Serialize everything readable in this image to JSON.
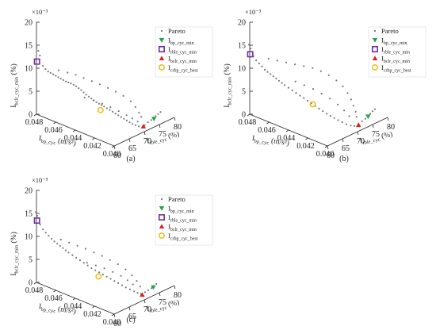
{
  "chart_data": [
    {
      "type": "scatter",
      "caption": "(a)",
      "projection": "3d",
      "zlabel": "I_bclr_cyc_min (%)",
      "zlabel_main": "I",
      "zlabel_sub": "bclr_cyc_min",
      "zlabel_unit": " (%)",
      "zscale_exponent": "×10⁻³",
      "z_ticks": [
        "0",
        "5",
        "10",
        "15",
        "20"
      ],
      "x_ticks": [
        "0.048",
        "0.046",
        "0.044",
        "0.042",
        "0.040"
      ],
      "y_ticks": [
        "60",
        "65",
        "70",
        "75",
        "80"
      ],
      "xlabel_main": "I",
      "xlabel_sub": "bp_cyc",
      "xlabel_unit": " (m/s²)",
      "ylabel_main": "I",
      "ylabel_sub": "rble_cyc",
      "ylabel_unit": " (%)",
      "legend": [
        {
          "main": "Pareto",
          "sub": "",
          "marker": "dot",
          "color": "#777777"
        },
        {
          "main": "I",
          "sub": "bp_cyc_min",
          "marker": "triangle-down",
          "color": "#22a050"
        },
        {
          "main": "I",
          "sub": "rble_cyc_min",
          "marker": "square",
          "color": "#7030a0"
        },
        {
          "main": "I",
          "sub": "bclr_cyc_min",
          "marker": "triangle-up",
          "color": "#e0201c"
        },
        {
          "main": "I",
          "sub": "crbp_cyc_best",
          "marker": "circle",
          "color": "#f0c020"
        }
      ],
      "highlight_points": {
        "bp_cyc_min": [
          0.04,
          73.2,
          0.0018
        ],
        "rble_cyc_min": [
          0.0481,
          60.5,
          0.0112
        ],
        "bclr_cyc_min": [
          0.0404,
          71.0,
          0.0005
        ],
        "crbp_cyc_best": [
          0.0428,
          64.5,
          0.004
        ]
      },
      "pareto_points": [
        [
          0.0481,
          60.4,
          0.0142
        ],
        [
          0.048,
          60.6,
          0.0136
        ],
        [
          0.0479,
          60.8,
          0.0126
        ],
        [
          0.0477,
          61.2,
          0.0104
        ],
        [
          0.0475,
          61.4,
          0.0098
        ],
        [
          0.0473,
          61.6,
          0.0094
        ],
        [
          0.0471,
          61.8,
          0.0092
        ],
        [
          0.0469,
          62.0,
          0.009
        ],
        [
          0.0467,
          62.2,
          0.0088
        ],
        [
          0.0465,
          62.4,
          0.0086
        ],
        [
          0.0463,
          62.6,
          0.0084
        ],
        [
          0.0461,
          62.8,
          0.0082
        ],
        [
          0.0459,
          63.0,
          0.008
        ],
        [
          0.0457,
          63.2,
          0.0079
        ],
        [
          0.0455,
          63.4,
          0.0078
        ],
        [
          0.0453,
          63.6,
          0.0076
        ],
        [
          0.0451,
          63.8,
          0.0074
        ],
        [
          0.0449,
          64.0,
          0.0071
        ],
        [
          0.0447,
          64.2,
          0.0068
        ],
        [
          0.0445,
          64.4,
          0.0064
        ],
        [
          0.0443,
          64.6,
          0.006
        ],
        [
          0.0441,
          64.8,
          0.0057
        ],
        [
          0.0439,
          65.0,
          0.0054
        ],
        [
          0.0437,
          65.2,
          0.0051
        ],
        [
          0.0435,
          65.4,
          0.0048
        ],
        [
          0.0433,
          65.6,
          0.0046
        ],
        [
          0.0431,
          65.8,
          0.0044
        ],
        [
          0.0429,
          66.0,
          0.0042
        ],
        [
          0.0427,
          66.3,
          0.0039
        ],
        [
          0.0425,
          66.6,
          0.0036
        ],
        [
          0.0423,
          66.9,
          0.0033
        ],
        [
          0.0421,
          67.2,
          0.003
        ],
        [
          0.0419,
          67.5,
          0.0027
        ],
        [
          0.0417,
          67.8,
          0.0024
        ],
        [
          0.0415,
          68.1,
          0.0021
        ],
        [
          0.0413,
          68.4,
          0.0018
        ],
        [
          0.0411,
          68.7,
          0.0015
        ],
        [
          0.0409,
          69.0,
          0.0012
        ],
        [
          0.0407,
          69.4,
          0.001
        ],
        [
          0.0405,
          69.8,
          0.0008
        ],
        [
          0.0403,
          70.3,
          0.0006
        ],
        [
          0.0402,
          70.8,
          0.001
        ],
        [
          0.0401,
          71.5,
          0.0015
        ],
        [
          0.04,
          72.3,
          0.0018
        ],
        [
          0.04,
          73.0,
          0.002
        ],
        [
          0.04,
          73.8,
          0.0022
        ],
        [
          0.04,
          74.6,
          0.0024
        ],
        [
          0.04,
          75.4,
          0.0026
        ],
        [
          0.0468,
          63.5,
          0.0095
        ],
        [
          0.0462,
          64.5,
          0.0092
        ],
        [
          0.0456,
          65.3,
          0.009
        ],
        [
          0.045,
          66.0,
          0.0086
        ],
        [
          0.0444,
          66.8,
          0.0082
        ],
        [
          0.0438,
          67.5,
          0.0078
        ],
        [
          0.0432,
          68.2,
          0.0073
        ],
        [
          0.0426,
          68.9,
          0.0068
        ],
        [
          0.042,
          69.5,
          0.0062
        ],
        [
          0.0414,
          70.0,
          0.0054
        ],
        [
          0.041,
          70.3,
          0.0044
        ],
        [
          0.0407,
          70.5,
          0.0034
        ],
        [
          0.0405,
          70.6,
          0.0026
        ],
        [
          0.0446,
          65.0,
          0.005
        ],
        [
          0.044,
          66.0,
          0.0046
        ],
        [
          0.0434,
          67.0,
          0.0041
        ],
        [
          0.0428,
          67.8,
          0.0036
        ],
        [
          0.0422,
          68.6,
          0.003
        ],
        [
          0.0416,
          69.3,
          0.0024
        ],
        [
          0.0412,
          69.9,
          0.0019
        ],
        [
          0.0408,
          70.4,
          0.0014
        ]
      ]
    },
    {
      "type": "scatter",
      "caption": "(b)",
      "projection": "3d",
      "zlabel": "I_bclr_cyc_min (%)",
      "zlabel_main": "I",
      "zlabel_sub": "bclr_cyc_min",
      "zlabel_unit": " (%)",
      "zscale_exponent": "×10⁻³",
      "z_ticks": [
        "0",
        "5",
        "10",
        "15",
        "20"
      ],
      "x_ticks": [
        "0.048",
        "0.046",
        "0.044",
        "0.042",
        "0.040"
      ],
      "y_ticks": [
        "60",
        "65",
        "70",
        "75",
        "80"
      ],
      "xlabel_main": "I",
      "xlabel_sub": "bp_cyc",
      "xlabel_unit": " (m/s²)",
      "ylabel_main": "I",
      "ylabel_sub": "rble_cyc",
      "ylabel_unit": " (%)",
      "legend": [
        {
          "main": "Pareto",
          "sub": "",
          "marker": "dot",
          "color": "#777777"
        },
        {
          "main": "I",
          "sub": "bp_cyc_min",
          "marker": "triangle-down",
          "color": "#22a050"
        },
        {
          "main": "I",
          "sub": "rble_cyc_min",
          "marker": "square",
          "color": "#7030a0"
        },
        {
          "main": "I",
          "sub": "bclr_cyc_min",
          "marker": "triangle-up",
          "color": "#e0201c"
        },
        {
          "main": "I",
          "sub": "crbp_cyc_best",
          "marker": "circle",
          "color": "#f0c020"
        }
      ],
      "highlight_points": {
        "bp_cyc_min": [
          0.04,
          73.5,
          0.0022
        ],
        "rble_cyc_min": [
          0.0481,
          60.5,
          0.0128
        ],
        "bclr_cyc_min": [
          0.0403,
          71.3,
          0.0008
        ],
        "crbp_cyc_best": [
          0.043,
          64.8,
          0.005
        ]
      },
      "pareto_points": [
        [
          0.0482,
          60.4,
          0.0148
        ],
        [
          0.0481,
          60.6,
          0.014
        ],
        [
          0.0479,
          60.9,
          0.0124
        ],
        [
          0.0477,
          61.2,
          0.0116
        ],
        [
          0.0475,
          61.5,
          0.011
        ],
        [
          0.0473,
          61.8,
          0.0104
        ],
        [
          0.0471,
          62.1,
          0.0098
        ],
        [
          0.0469,
          62.4,
          0.0094
        ],
        [
          0.0467,
          62.7,
          0.009
        ],
        [
          0.0465,
          63.0,
          0.0086
        ],
        [
          0.0463,
          63.3,
          0.0082
        ],
        [
          0.0461,
          63.6,
          0.0078
        ],
        [
          0.0459,
          63.9,
          0.0074
        ],
        [
          0.0457,
          64.2,
          0.007
        ],
        [
          0.0454,
          64.5,
          0.0066
        ],
        [
          0.0451,
          64.8,
          0.0062
        ],
        [
          0.0448,
          65.1,
          0.0058
        ],
        [
          0.0445,
          65.4,
          0.0054
        ],
        [
          0.0442,
          65.7,
          0.005
        ],
        [
          0.0439,
          66.0,
          0.0046
        ],
        [
          0.0436,
          66.3,
          0.0042
        ],
        [
          0.0433,
          66.6,
          0.0038
        ],
        [
          0.043,
          66.9,
          0.0034
        ],
        [
          0.0427,
          67.2,
          0.003
        ],
        [
          0.0424,
          67.5,
          0.0026
        ],
        [
          0.0421,
          67.8,
          0.0023
        ],
        [
          0.0418,
          68.1,
          0.002
        ],
        [
          0.0415,
          68.4,
          0.0017
        ],
        [
          0.0412,
          68.8,
          0.0014
        ],
        [
          0.0409,
          69.2,
          0.0011
        ],
        [
          0.0406,
          69.7,
          0.0009
        ],
        [
          0.0404,
          70.3,
          0.0008
        ],
        [
          0.0402,
          71.0,
          0.0012
        ],
        [
          0.0401,
          71.8,
          0.0016
        ],
        [
          0.04,
          72.6,
          0.002
        ],
        [
          0.04,
          73.4,
          0.0023
        ],
        [
          0.04,
          74.2,
          0.0026
        ],
        [
          0.04,
          75.0,
          0.0029
        ],
        [
          0.04,
          75.8,
          0.0031
        ],
        [
          0.047,
          63.0,
          0.012
        ],
        [
          0.0464,
          64.0,
          0.0118
        ],
        [
          0.0458,
          65.0,
          0.0116
        ],
        [
          0.0452,
          66.0,
          0.0114
        ],
        [
          0.0446,
          67.0,
          0.0112
        ],
        [
          0.044,
          68.0,
          0.011
        ],
        [
          0.0434,
          68.8,
          0.0106
        ],
        [
          0.0428,
          69.5,
          0.01
        ],
        [
          0.0422,
          70.1,
          0.0092
        ],
        [
          0.0417,
          70.6,
          0.0082
        ],
        [
          0.0413,
          70.9,
          0.007
        ],
        [
          0.041,
          71.1,
          0.0058
        ],
        [
          0.0408,
          71.2,
          0.0046
        ],
        [
          0.0406,
          71.3,
          0.0034
        ],
        [
          0.0405,
          71.3,
          0.0024
        ],
        [
          0.045,
          65.5,
          0.008
        ],
        [
          0.0444,
          66.5,
          0.0074
        ],
        [
          0.0438,
          67.5,
          0.0068
        ],
        [
          0.0432,
          68.4,
          0.006
        ],
        [
          0.0426,
          69.2,
          0.0052
        ],
        [
          0.042,
          69.9,
          0.0042
        ],
        [
          0.0415,
          70.4,
          0.0032
        ],
        [
          0.0411,
          70.8,
          0.0022
        ]
      ]
    },
    {
      "type": "scatter",
      "caption": "(c)",
      "projection": "3d",
      "zlabel": "I_bclr_cyc_min (%)",
      "zlabel_main": "I",
      "zlabel_sub": "bclr_cyc_min",
      "zlabel_unit": " (%)",
      "zscale_exponent": "×10⁻³",
      "z_ticks": [
        "0",
        "5",
        "10",
        "15",
        "20"
      ],
      "x_ticks": [
        "0.048",
        "0.046",
        "0.044",
        "0.042",
        "0.040"
      ],
      "y_ticks": [
        "60",
        "65",
        "70",
        "75",
        "80"
      ],
      "xlabel_main": "I",
      "xlabel_sub": "bp_cyc",
      "xlabel_unit": " (m/s²)",
      "ylabel_main": "I",
      "ylabel_sub": "rble_cyc",
      "ylabel_unit": " (%)",
      "legend": [
        {
          "main": "Pareto",
          "sub": "",
          "marker": "dot",
          "color": "#777777"
        },
        {
          "main": "I",
          "sub": "bp_cyc_min",
          "marker": "triangle-down",
          "color": "#22a050"
        },
        {
          "main": "I",
          "sub": "rble_cyc_min",
          "marker": "square",
          "color": "#7030a0"
        },
        {
          "main": "I",
          "sub": "bclr_cyc_min",
          "marker": "triangle-up",
          "color": "#e0201c"
        },
        {
          "main": "I",
          "sub": "crbp_cyc_best",
          "marker": "circle",
          "color": "#f0c020"
        }
      ],
      "highlight_points": {
        "bp_cyc_min": [
          0.04,
          73.0,
          0.0018
        ],
        "rble_cyc_min": [
          0.0481,
          60.5,
          0.0132
        ],
        "bclr_cyc_min": [
          0.0404,
          70.6,
          0.0006
        ],
        "crbp_cyc_best": [
          0.043,
          64.5,
          0.0042
        ]
      },
      "pareto_points": [
        [
          0.0482,
          60.4,
          0.015
        ],
        [
          0.0481,
          60.6,
          0.0142
        ],
        [
          0.0479,
          60.9,
          0.0124
        ],
        [
          0.0477,
          61.2,
          0.0114
        ],
        [
          0.0475,
          61.5,
          0.0108
        ],
        [
          0.0473,
          61.8,
          0.0102
        ],
        [
          0.0471,
          62.1,
          0.0096
        ],
        [
          0.0469,
          62.4,
          0.0091
        ],
        [
          0.0467,
          62.7,
          0.0087
        ],
        [
          0.0465,
          63.0,
          0.0083
        ],
        [
          0.0463,
          63.3,
          0.0079
        ],
        [
          0.0461,
          63.6,
          0.0075
        ],
        [
          0.0459,
          63.9,
          0.0071
        ],
        [
          0.0456,
          64.2,
          0.0067
        ],
        [
          0.0453,
          64.5,
          0.0063
        ],
        [
          0.045,
          64.8,
          0.0059
        ],
        [
          0.0447,
          65.1,
          0.0055
        ],
        [
          0.0444,
          65.4,
          0.0051
        ],
        [
          0.0441,
          65.7,
          0.0047
        ],
        [
          0.0438,
          66.0,
          0.0044
        ],
        [
          0.0435,
          66.3,
          0.0041
        ],
        [
          0.0432,
          66.6,
          0.0038
        ],
        [
          0.0429,
          66.9,
          0.0035
        ],
        [
          0.0426,
          67.2,
          0.0032
        ],
        [
          0.0423,
          67.5,
          0.0029
        ],
        [
          0.042,
          67.8,
          0.0026
        ],
        [
          0.0417,
          68.1,
          0.0023
        ],
        [
          0.0414,
          68.4,
          0.002
        ],
        [
          0.0411,
          68.8,
          0.0017
        ],
        [
          0.0408,
          69.2,
          0.0014
        ],
        [
          0.0406,
          69.7,
          0.0011
        ],
        [
          0.0404,
          70.2,
          0.0009
        ],
        [
          0.0402,
          70.9,
          0.0012
        ],
        [
          0.0401,
          71.6,
          0.0015
        ],
        [
          0.04,
          72.4,
          0.0018
        ],
        [
          0.04,
          73.2,
          0.002
        ],
        [
          0.04,
          74.0,
          0.0022
        ],
        [
          0.0466,
          63.6,
          0.0094
        ],
        [
          0.046,
          64.4,
          0.009
        ],
        [
          0.0454,
          65.2,
          0.0086
        ],
        [
          0.0448,
          66.0,
          0.0082
        ],
        [
          0.0442,
          66.8,
          0.0077
        ],
        [
          0.0436,
          67.6,
          0.0072
        ],
        [
          0.043,
          68.3,
          0.0066
        ],
        [
          0.0424,
          69.0,
          0.006
        ],
        [
          0.0418,
          69.6,
          0.0052
        ],
        [
          0.0413,
          70.1,
          0.0042
        ],
        [
          0.0409,
          70.4,
          0.0032
        ],
        [
          0.0406,
          70.6,
          0.0022
        ],
        [
          0.0445,
          65.5,
          0.0056
        ],
        [
          0.0439,
          66.5,
          0.0052
        ],
        [
          0.0433,
          67.4,
          0.0048
        ],
        [
          0.0427,
          68.2,
          0.0043
        ],
        [
          0.0421,
          69.0,
          0.0037
        ],
        [
          0.0416,
          69.6,
          0.003
        ],
        [
          0.0412,
          70.1,
          0.0023
        ]
      ]
    }
  ]
}
